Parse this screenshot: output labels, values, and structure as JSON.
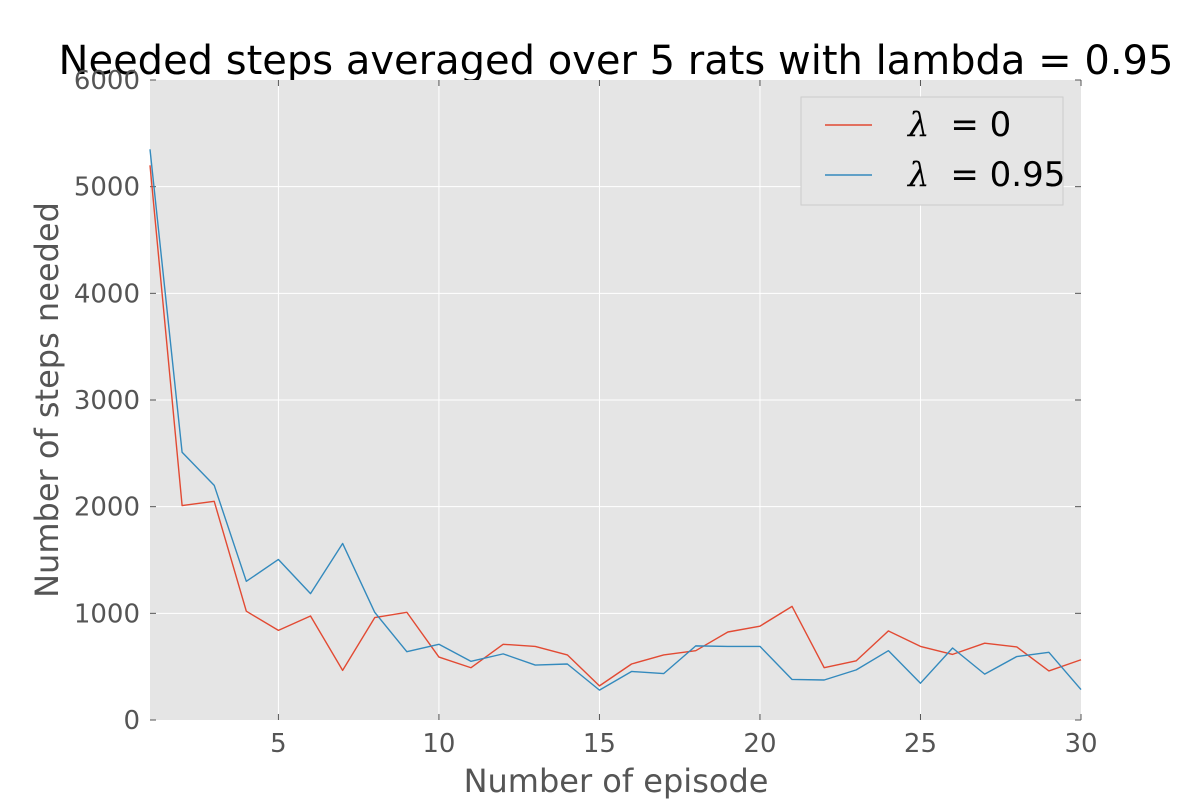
{
  "chart_data": {
    "type": "line",
    "title": "Needed steps averaged over 5 rats with lambda = 0.95",
    "xlabel": "Number of episode",
    "ylabel": "Number of steps needed",
    "xlim": [
      1,
      30
    ],
    "ylim": [
      0,
      6000
    ],
    "xticks": [
      5,
      10,
      15,
      20,
      25,
      30
    ],
    "yticks": [
      0,
      1000,
      2000,
      3000,
      4000,
      5000,
      6000
    ],
    "grid": true,
    "legend_position": "top-right",
    "x": [
      1,
      2,
      3,
      4,
      5,
      6,
      7,
      8,
      9,
      10,
      11,
      12,
      13,
      14,
      15,
      16,
      17,
      18,
      19,
      20,
      21,
      22,
      23,
      24,
      25,
      26,
      27,
      28,
      29,
      30
    ],
    "series": [
      {
        "name": "λ = 0",
        "legend_symbol": "λ",
        "legend_value": "= 0",
        "color": "#E24A33",
        "values": [
          5200,
          2010,
          2050,
          1020,
          840,
          975,
          465,
          960,
          1010,
          590,
          490,
          710,
          690,
          610,
          320,
          525,
          610,
          650,
          825,
          880,
          1065,
          490,
          555,
          835,
          690,
          615,
          720,
          685,
          460,
          565
        ]
      },
      {
        "name": "λ = 0.95",
        "legend_symbol": "λ",
        "legend_value": "= 0.95",
        "color": "#348ABD",
        "values": [
          5350,
          2510,
          2200,
          1300,
          1505,
          1185,
          1655,
          1010,
          640,
          710,
          550,
          620,
          515,
          525,
          280,
          455,
          435,
          695,
          690,
          690,
          380,
          375,
          470,
          650,
          345,
          675,
          430,
          595,
          635,
          285
        ]
      }
    ]
  }
}
